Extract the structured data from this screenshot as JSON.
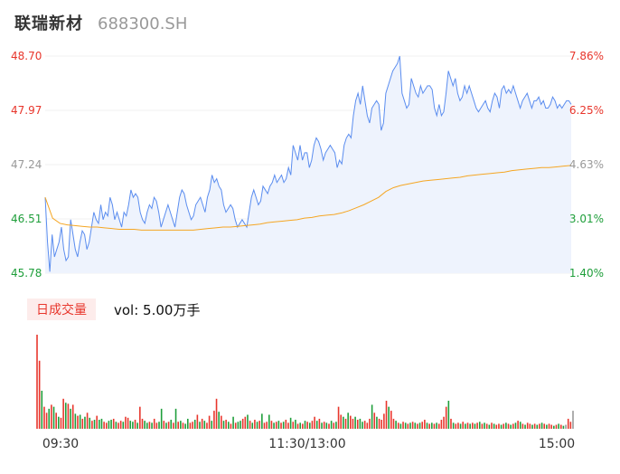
{
  "header": {
    "name": "联瑞新材",
    "code": "688300.SH"
  },
  "volume_panel": {
    "tab_label": "日成交量",
    "vol_label": "vol: 5.00万手"
  },
  "colors": {
    "price_line": "#5b8def",
    "avg_line": "#f5a623",
    "up": "#e8362c",
    "down": "#1e9e3a",
    "neutral": "#999999",
    "fill": "#eef3fd"
  },
  "chart_data": [
    {
      "type": "line",
      "title": "",
      "ylim": [
        45.78,
        48.7
      ],
      "y_ticks_left": [
        "48.70",
        "47.97",
        "47.24",
        "46.51",
        "45.78"
      ],
      "y_ticks_right": [
        "7.86%",
        "6.25%",
        "4.63%",
        "3.01%",
        "1.40%"
      ],
      "x_ticks": [
        "09:30",
        "11:30/13:00",
        "15:00"
      ],
      "series": [
        {
          "key": "price",
          "values": [
            46.8,
            46.2,
            45.8,
            46.3,
            46.0,
            46.1,
            46.2,
            46.4,
            46.1,
            45.95,
            46.0,
            46.5,
            46.3,
            46.1,
            46.0,
            46.2,
            46.35,
            46.3,
            46.1,
            46.2,
            46.4,
            46.6,
            46.5,
            46.45,
            46.7,
            46.5,
            46.6,
            46.55,
            46.8,
            46.7,
            46.5,
            46.6,
            46.5,
            46.4,
            46.6,
            46.55,
            46.7,
            46.9,
            46.8,
            46.85,
            46.8,
            46.6,
            46.5,
            46.45,
            46.6,
            46.7,
            46.65,
            46.8,
            46.75,
            46.6,
            46.4,
            46.5,
            46.6,
            46.7,
            46.6,
            46.5,
            46.4,
            46.6,
            46.8,
            46.9,
            46.85,
            46.7,
            46.6,
            46.5,
            46.55,
            46.7,
            46.75,
            46.8,
            46.7,
            46.6,
            46.8,
            46.9,
            47.1,
            47.0,
            47.05,
            46.95,
            46.9,
            46.7,
            46.6,
            46.65,
            46.7,
            46.65,
            46.5,
            46.4,
            46.45,
            46.5,
            46.45,
            46.4,
            46.6,
            46.8,
            46.9,
            46.8,
            46.7,
            46.75,
            46.95,
            46.9,
            46.85,
            46.95,
            47.0,
            47.1,
            47.0,
            47.05,
            47.1,
            47.0,
            47.05,
            47.2,
            47.1,
            47.5,
            47.4,
            47.3,
            47.5,
            47.3,
            47.4,
            47.4,
            47.2,
            47.3,
            47.5,
            47.6,
            47.55,
            47.45,
            47.3,
            47.4,
            47.45,
            47.5,
            47.45,
            47.4,
            47.2,
            47.3,
            47.25,
            47.5,
            47.6,
            47.65,
            47.6,
            47.9,
            48.1,
            48.2,
            48.05,
            48.3,
            48.1,
            47.9,
            47.8,
            48.0,
            48.05,
            48.1,
            48.05,
            47.7,
            47.8,
            48.2,
            48.3,
            48.4,
            48.5,
            48.55,
            48.6,
            48.7,
            48.2,
            48.1,
            48.0,
            48.05,
            48.4,
            48.3,
            48.2,
            48.15,
            48.3,
            48.2,
            48.25,
            48.3,
            48.3,
            48.25,
            48.0,
            47.9,
            48.05,
            47.9,
            47.95,
            48.2,
            48.5,
            48.4,
            48.3,
            48.4,
            48.2,
            48.1,
            48.15,
            48.3,
            48.2,
            48.3,
            48.2,
            48.1,
            48.0,
            47.95,
            48.0,
            48.05,
            48.1,
            48.0,
            47.95,
            48.1,
            48.2,
            48.15,
            48.0,
            48.25,
            48.3,
            48.2,
            48.25,
            48.2,
            48.3,
            48.2,
            48.1,
            48.0,
            48.1,
            48.15,
            48.2,
            48.1,
            48.0,
            48.1,
            48.1,
            48.15,
            48.05,
            48.1,
            48.0,
            48.0,
            48.05,
            48.15,
            48.1,
            48.0,
            48.05,
            48.0,
            48.05,
            48.1,
            48.1,
            48.05
          ]
        },
        {
          "key": "average",
          "values": [
            46.8,
            46.52,
            46.45,
            46.43,
            46.42,
            46.41,
            46.4,
            46.4,
            46.39,
            46.38,
            46.37,
            46.37,
            46.37,
            46.36,
            46.36,
            46.36,
            46.36,
            46.36,
            46.36,
            46.36,
            46.36,
            46.37,
            46.38,
            46.39,
            46.4,
            46.4,
            46.41,
            46.42,
            46.43,
            46.44,
            46.46,
            46.47,
            46.48,
            46.49,
            46.5,
            46.52,
            46.53,
            46.55,
            46.56,
            46.57,
            46.59,
            46.62,
            46.66,
            46.7,
            46.75,
            46.8,
            46.88,
            46.93,
            46.96,
            46.98,
            47.0,
            47.02,
            47.03,
            47.04,
            47.05,
            47.06,
            47.07,
            47.09,
            47.1,
            47.11,
            47.12,
            47.13,
            47.14,
            47.16,
            47.17,
            47.18,
            47.19,
            47.2,
            47.2,
            47.21,
            47.22,
            47.23
          ]
        }
      ],
      "volume": {
        "values": [
          9.4,
          6.8,
          3.8,
          2.2,
          1.6,
          2.0,
          2.4,
          2.2,
          1.6,
          1.2,
          1.1,
          3.0,
          2.6,
          2.5,
          2.0,
          2.4,
          1.5,
          1.3,
          1.4,
          1.0,
          1.2,
          1.6,
          1.1,
          0.8,
          0.9,
          1.3,
          0.9,
          1.0,
          0.7,
          0.6,
          0.8,
          0.9,
          1.0,
          0.7,
          0.6,
          0.8,
          0.7,
          1.2,
          1.1,
          0.8,
          0.7,
          0.9,
          0.6,
          2.2,
          1.0,
          0.8,
          0.6,
          0.7,
          0.6,
          1.0,
          0.6,
          0.7,
          2.0,
          0.8,
          0.6,
          0.7,
          0.9,
          0.6,
          2.0,
          0.7,
          0.8,
          0.6,
          0.5,
          1.0,
          0.6,
          0.7,
          0.9,
          1.4,
          0.7,
          1.0,
          0.8,
          0.6,
          1.3,
          0.8,
          1.8,
          3.0,
          1.7,
          1.3,
          0.8,
          0.9,
          0.7,
          0.5,
          1.2,
          0.6,
          0.7,
          0.8,
          1.0,
          1.2,
          1.4,
          0.8,
          0.6,
          0.9,
          0.7,
          0.8,
          1.5,
          0.6,
          0.7,
          1.4,
          0.8,
          0.6,
          0.7,
          0.8,
          0.6,
          0.7,
          0.9,
          0.6,
          1.1,
          0.7,
          0.9,
          0.5,
          0.6,
          0.5,
          0.8,
          0.7,
          0.6,
          0.8,
          1.2,
          0.8,
          1.0,
          0.6,
          0.7,
          0.6,
          0.5,
          0.8,
          0.6,
          0.7,
          2.2,
          1.4,
          1.2,
          1.0,
          1.6,
          1.3,
          1.0,
          1.2,
          0.9,
          1.0,
          0.7,
          0.8,
          0.6,
          1.0,
          2.4,
          1.6,
          1.2,
          1.0,
          0.9,
          1.5,
          2.8,
          2.2,
          1.8,
          1.0,
          0.8,
          0.6,
          0.5,
          0.7,
          0.6,
          0.5,
          0.6,
          0.7,
          0.6,
          0.5,
          0.6,
          0.7,
          0.9,
          0.6,
          0.5,
          0.6,
          0.5,
          0.6,
          0.5,
          0.9,
          1.2,
          2.2,
          2.8,
          1.0,
          0.6,
          0.5,
          0.6,
          0.5,
          0.7,
          0.5,
          0.6,
          0.5,
          0.6,
          0.5,
          0.6,
          0.7,
          0.5,
          0.6,
          0.5,
          0.4,
          0.6,
          0.5,
          0.4,
          0.5,
          0.4,
          0.5,
          0.6,
          0.5,
          0.4,
          0.5,
          0.6,
          0.8,
          0.7,
          0.5,
          0.4,
          0.6,
          0.5,
          0.4,
          0.5,
          0.4,
          0.5,
          0.6,
          0.5,
          0.4,
          0.5,
          0.4,
          0.3,
          0.4,
          0.5,
          0.4,
          0.3,
          0.4,
          1.0,
          0.7,
          1.8
        ],
        "colors": [
          "u",
          "u",
          "d",
          "u",
          "u",
          "d",
          "u",
          "d",
          "u",
          "d",
          "u",
          "u",
          "d",
          "u",
          "d",
          "u",
          "d",
          "u",
          "d",
          "u",
          "d",
          "u",
          "d",
          "u",
          "d",
          "u",
          "d",
          "d",
          "u",
          "u",
          "d",
          "d",
          "u",
          "d",
          "u",
          "u",
          "d",
          "u",
          "u",
          "d",
          "d",
          "u",
          "d",
          "u",
          "u",
          "d",
          "d",
          "u",
          "d",
          "u",
          "u",
          "d",
          "d",
          "u",
          "d",
          "u",
          "d",
          "u",
          "d",
          "u",
          "d",
          "u",
          "d",
          "d",
          "u",
          "u",
          "d",
          "u",
          "d",
          "u",
          "d",
          "u",
          "u",
          "d",
          "u",
          "u",
          "d",
          "u",
          "d",
          "u",
          "d",
          "u",
          "d",
          "u",
          "d",
          "d",
          "u",
          "u",
          "d",
          "u",
          "d",
          "u",
          "d",
          "u",
          "d",
          "u",
          "u",
          "d",
          "u",
          "d",
          "u",
          "d",
          "u",
          "d",
          "u",
          "u",
          "d",
          "u",
          "d",
          "u",
          "d",
          "u",
          "d",
          "u",
          "d",
          "u",
          "u",
          "d",
          "u",
          "d",
          "u",
          "d",
          "u",
          "d",
          "u",
          "d",
          "u",
          "u",
          "d",
          "u",
          "d",
          "u",
          "u",
          "d",
          "u",
          "d",
          "d",
          "u",
          "u",
          "u",
          "d",
          "u",
          "d",
          "u",
          "u",
          "u",
          "u",
          "d",
          "u",
          "u",
          "d",
          "u",
          "d",
          "u",
          "d",
          "u",
          "d",
          "u",
          "d",
          "u",
          "d",
          "u",
          "u",
          "d",
          "u",
          "d",
          "u",
          "d",
          "u",
          "u",
          "u",
          "u",
          "d",
          "u",
          "d",
          "u",
          "u",
          "d",
          "u",
          "d",
          "u",
          "d",
          "u",
          "d",
          "u",
          "d",
          "u",
          "d",
          "u",
          "d",
          "u",
          "d",
          "u",
          "u",
          "d",
          "u",
          "d",
          "u",
          "d",
          "u",
          "d",
          "u",
          "d",
          "u",
          "d",
          "u",
          "u",
          "d",
          "u",
          "d",
          "u",
          "d",
          "u",
          "d",
          "u",
          "u",
          "d",
          "u",
          "d",
          "u",
          "d",
          "n",
          "u",
          "u"
        ]
      }
    }
  ]
}
